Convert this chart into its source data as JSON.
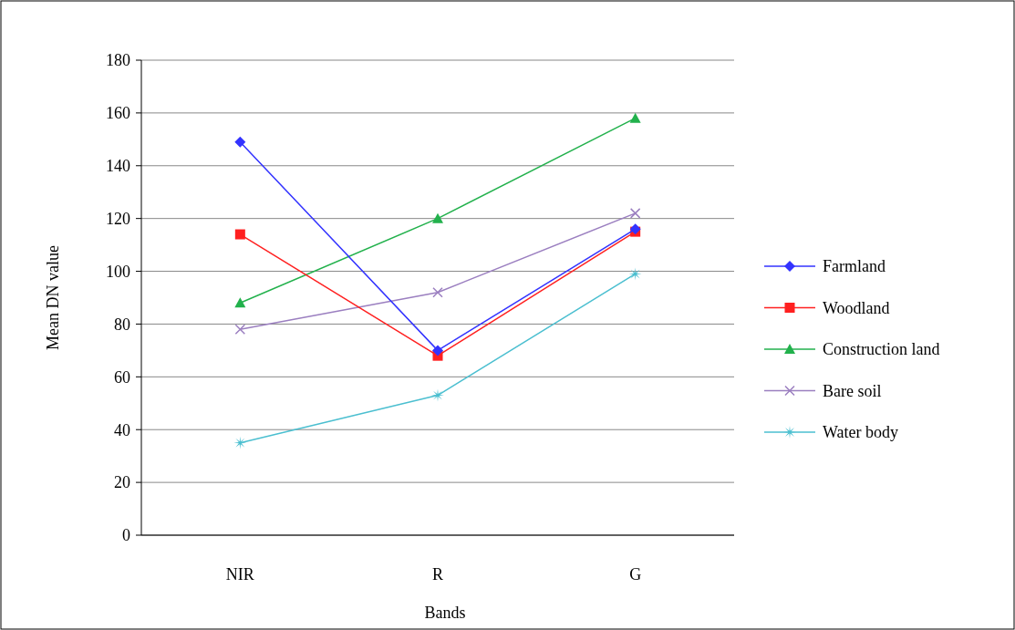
{
  "chart_data": {
    "type": "line",
    "xlabel": "Bands",
    "ylabel": "Mean DN value",
    "categories": [
      "NIR",
      "R",
      "G"
    ],
    "ylim": [
      0,
      180
    ],
    "yticks": [
      0,
      20,
      40,
      60,
      80,
      100,
      120,
      140,
      160,
      180
    ],
    "grid": "y",
    "legend": "right",
    "series": [
      {
        "name": "Farmland",
        "color": "#3333ff",
        "marker": "diamond",
        "values": [
          149,
          70,
          116
        ]
      },
      {
        "name": "Woodland",
        "color": "#ff2020",
        "marker": "square",
        "values": [
          114,
          68,
          115
        ]
      },
      {
        "name": "Construction land",
        "color": "#22b14c",
        "marker": "triangle",
        "values": [
          88,
          120,
          158
        ]
      },
      {
        "name": "Bare soil",
        "color": "#9b7fc0",
        "marker": "cross",
        "values": [
          78,
          92,
          122
        ]
      },
      {
        "name": "Water body",
        "color": "#4bbfd0",
        "marker": "star",
        "values": [
          35,
          53,
          99
        ]
      }
    ]
  }
}
